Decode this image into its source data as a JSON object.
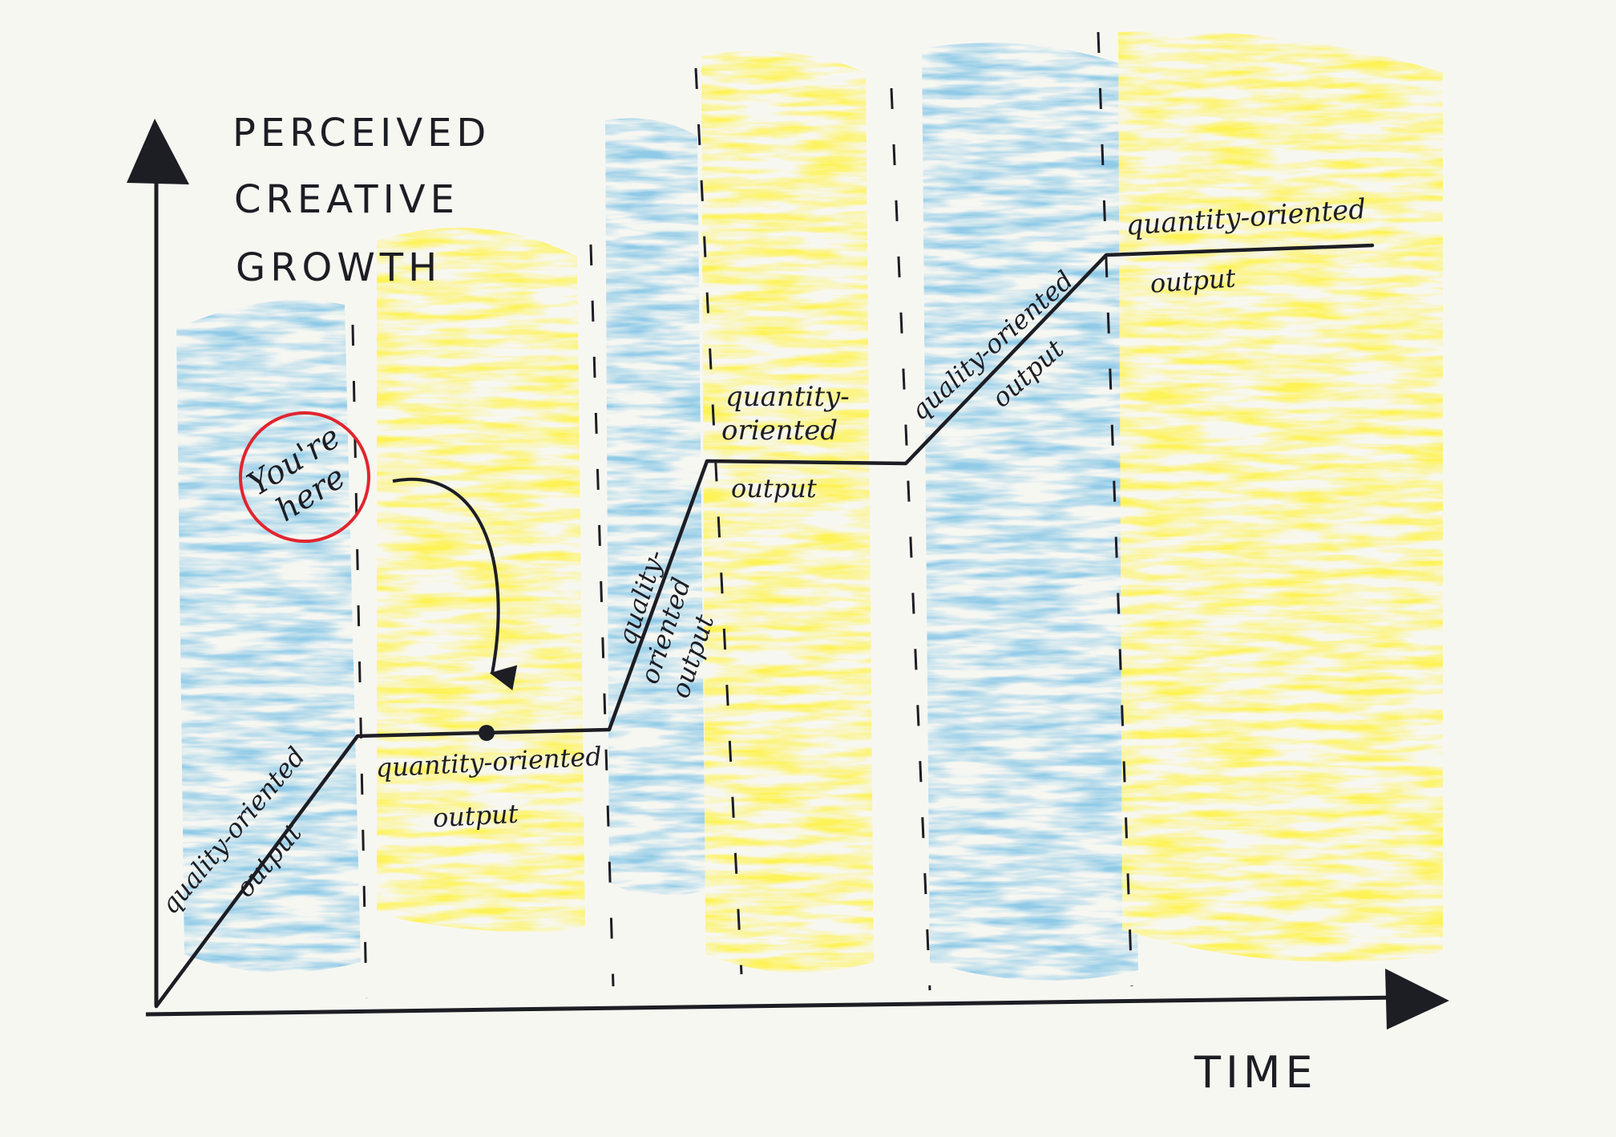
{
  "colors": {
    "paper": "#f7f7f2",
    "ink": "#1d1d24",
    "blue_wash": "#7fc3e6",
    "yellow_wash": "#fff23a",
    "circle_red": "#e0252f"
  },
  "axes": {
    "y_label_lines": [
      "PERCEIVED",
      "CREATIVE",
      "GROWTH"
    ],
    "x_label": "TIME"
  },
  "phases": [
    {
      "kind": "quality",
      "label_lines": [
        "quality-oriented",
        "output"
      ]
    },
    {
      "kind": "quantity",
      "label_lines": [
        "quantity-oriented",
        "output"
      ]
    },
    {
      "kind": "quality",
      "label_lines": [
        "quality-",
        "oriented",
        "output"
      ]
    },
    {
      "kind": "quantity",
      "label_lines": [
        "quantity-",
        "oriented",
        "output"
      ]
    },
    {
      "kind": "quality",
      "label_lines": [
        "quality-oriented",
        "output"
      ]
    },
    {
      "kind": "quantity",
      "label_lines": [
        "quantity-oriented",
        "output"
      ]
    }
  ],
  "marker": {
    "label_lines": [
      "You're",
      "here"
    ]
  }
}
